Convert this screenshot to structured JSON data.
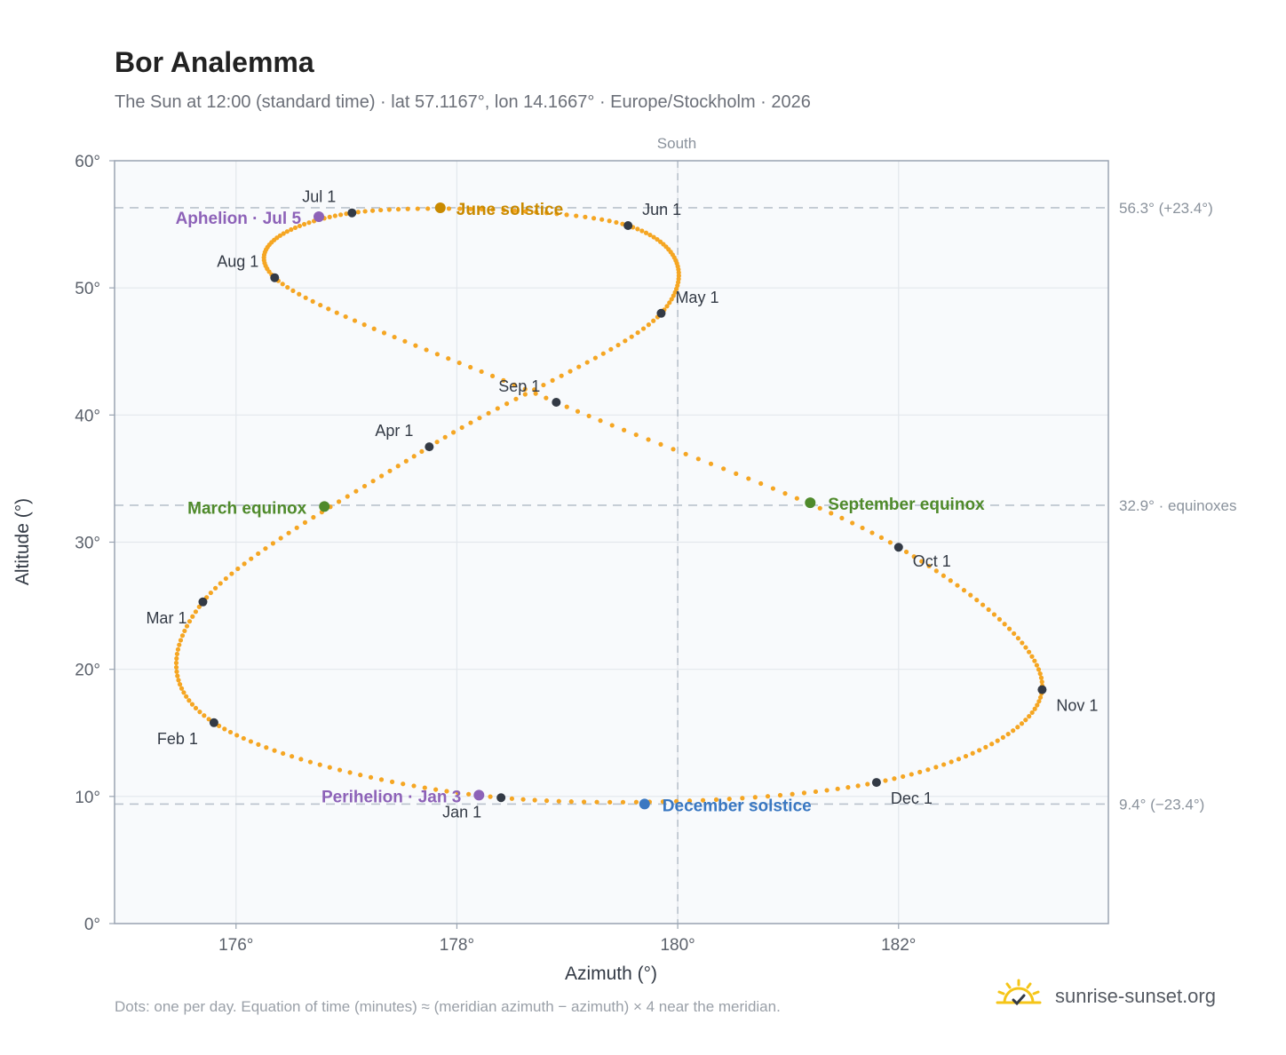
{
  "header": {
    "title": "Bor Analemma",
    "subtitle": "The Sun at 12:00 (standard time) · lat 57.1167°, lon 14.1667° · Europe/Stockholm · 2026"
  },
  "footer": {
    "note": "Dots: one per day. Equation of time (minutes) ≈ (meridian azimuth − azimuth) × 4 near the meridian.",
    "brand": "sunrise-sunset.org"
  },
  "colors": {
    "path": "#f5a623",
    "month_dot": "#333a45",
    "june": "#c98a00",
    "december": "#3a78c2",
    "equinox": "#4f8a2b",
    "apsis": "#8d62b8",
    "grid": "#e3e7ec",
    "reference": "#b9c2cc",
    "plot_bg": "#f8fafc",
    "frame": "#9aa4b2"
  },
  "chart_data": {
    "type": "scatter",
    "xlabel": "Azimuth (°)",
    "ylabel": "Altitude (°)",
    "xlim": [
      174.9,
      183.9
    ],
    "ylim": [
      0,
      60
    ],
    "xticks": [
      176,
      178,
      180,
      182
    ],
    "xtick_labels": [
      "176°",
      "178°",
      "180°",
      "182°"
    ],
    "yticks": [
      0,
      10,
      20,
      30,
      40,
      50,
      60
    ],
    "ytick_labels": [
      "0°",
      "10°",
      "20°",
      "30°",
      "40°",
      "50°",
      "60°"
    ],
    "grid": true,
    "meridian": {
      "x": 180,
      "label": "South"
    },
    "reference_lines": [
      {
        "y": 56.3,
        "label": "56.3° (+23.4°)"
      },
      {
        "y": 32.9,
        "label": "32.9° · equinoxes"
      },
      {
        "y": 9.4,
        "label": "9.4° (−23.4°)"
      }
    ],
    "month_points": [
      {
        "label": "Jan 1",
        "az": 178.4,
        "alt": 9.9
      },
      {
        "label": "Feb 1",
        "az": 175.8,
        "alt": 15.8
      },
      {
        "label": "Mar 1",
        "az": 175.7,
        "alt": 25.3
      },
      {
        "label": "Apr 1",
        "az": 177.75,
        "alt": 37.5
      },
      {
        "label": "May 1",
        "az": 179.85,
        "alt": 48.0
      },
      {
        "label": "Jun 1",
        "az": 179.55,
        "alt": 54.9
      },
      {
        "label": "Jul 1",
        "az": 177.05,
        "alt": 55.9
      },
      {
        "label": "Aug 1",
        "az": 176.35,
        "alt": 50.8
      },
      {
        "label": "Sep 1",
        "az": 178.9,
        "alt": 41.0
      },
      {
        "label": "Oct 1",
        "az": 182.0,
        "alt": 29.6
      },
      {
        "label": "Nov 1",
        "az": 183.3,
        "alt": 18.4
      },
      {
        "label": "Dec 1",
        "az": 181.8,
        "alt": 11.1
      }
    ],
    "events": [
      {
        "label": "June solstice",
        "az": 177.85,
        "alt": 56.3,
        "color_key": "june"
      },
      {
        "label": "December solstice",
        "az": 179.7,
        "alt": 9.4,
        "color_key": "december"
      },
      {
        "label": "March equinox",
        "az": 176.8,
        "alt": 32.8,
        "color_key": "equinox"
      },
      {
        "label": "September equinox",
        "az": 181.2,
        "alt": 33.1,
        "color_key": "equinox"
      },
      {
        "label": "Aphelion · Jul 5",
        "az": 176.75,
        "alt": 55.6,
        "color_key": "apsis"
      },
      {
        "label": "Perihelion · Jan 3",
        "az": 178.2,
        "alt": 10.1,
        "color_key": "apsis"
      }
    ]
  }
}
